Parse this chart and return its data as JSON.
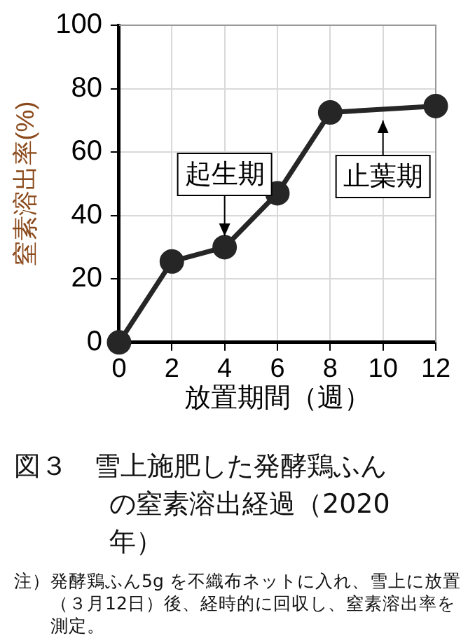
{
  "chart_data": {
    "type": "line",
    "title": "図３　雪上施肥した発酵鶏ふんの窒素溶出経過（2020年）",
    "xlabel": "放置期間（週）",
    "ylabel": "窒素溶出率(%)",
    "x": [
      0,
      2,
      4,
      6,
      8,
      12
    ],
    "series": [
      {
        "color": "#262626",
        "values": [
          0,
          25.5,
          30,
          47,
          72.5,
          74.5
        ]
      }
    ],
    "xlim": [
      0,
      12
    ],
    "xticks": [
      0,
      2,
      4,
      6,
      8,
      10,
      12
    ],
    "ylim": [
      0,
      100
    ],
    "yticks": [
      0,
      20,
      40,
      60,
      80,
      100
    ],
    "grid": true,
    "legend": false,
    "marker": "circle",
    "line_style": "solid",
    "annotations": [
      {
        "text": "起生期",
        "x": 4,
        "y": 30
      },
      {
        "text": "止葉期",
        "x": 10,
        "y": 73.5
      },
      "注）発酵鶏ふん5g を不織布ネットに入れ、雪上に放置（３月12日）後、経時的に回収し、窒素溶出率を測定。"
    ]
  }
}
